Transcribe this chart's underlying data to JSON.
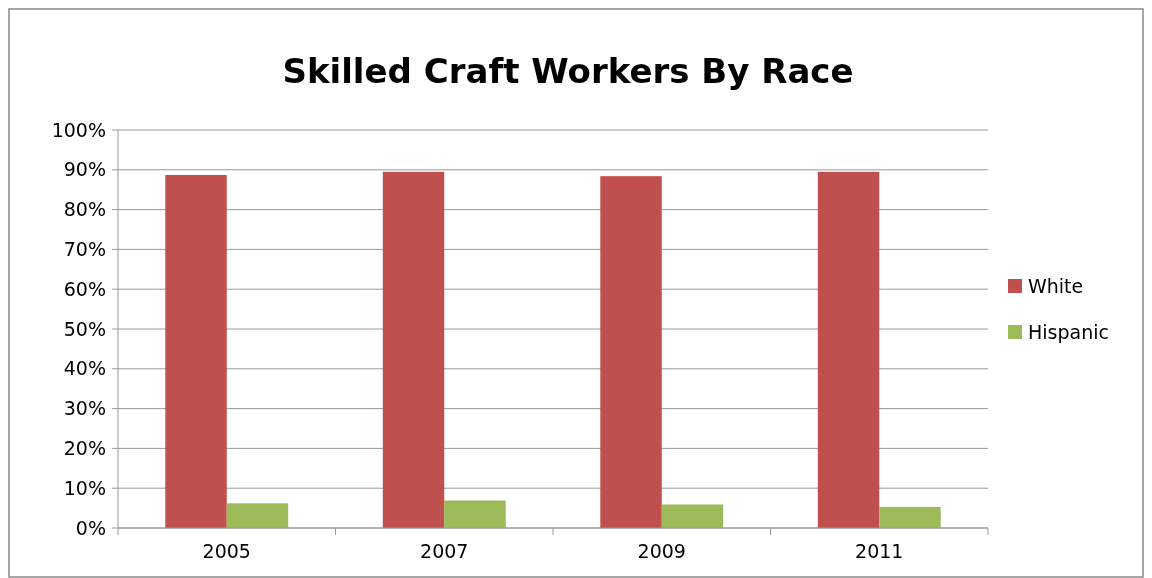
{
  "chart_data": {
    "type": "bar",
    "title": "Skilled Craft Workers By Race",
    "categories": [
      "2005",
      "2007",
      "2009",
      "2011"
    ],
    "series": [
      {
        "name": "White",
        "color": "#c0504d",
        "values": [
          88.7,
          89.5,
          88.4,
          89.5
        ]
      },
      {
        "name": "Hispanic",
        "color": "#9bbb59",
        "values": [
          6.2,
          6.9,
          5.9,
          5.3
        ]
      }
    ],
    "ylim": [
      0,
      100
    ],
    "yticks": [
      {
        "value": 0,
        "label": "0%"
      },
      {
        "value": 10,
        "label": "10%"
      },
      {
        "value": 20,
        "label": "20%"
      },
      {
        "value": 30,
        "label": "30%"
      },
      {
        "value": 40,
        "label": "40%"
      },
      {
        "value": 50,
        "label": "50%"
      },
      {
        "value": 60,
        "label": "60%"
      },
      {
        "value": 70,
        "label": "70%"
      },
      {
        "value": 80,
        "label": "80%"
      },
      {
        "value": 90,
        "label": "90%"
      },
      {
        "value": 100,
        "label": "100%"
      }
    ],
    "grid": "y",
    "legend": "right"
  }
}
